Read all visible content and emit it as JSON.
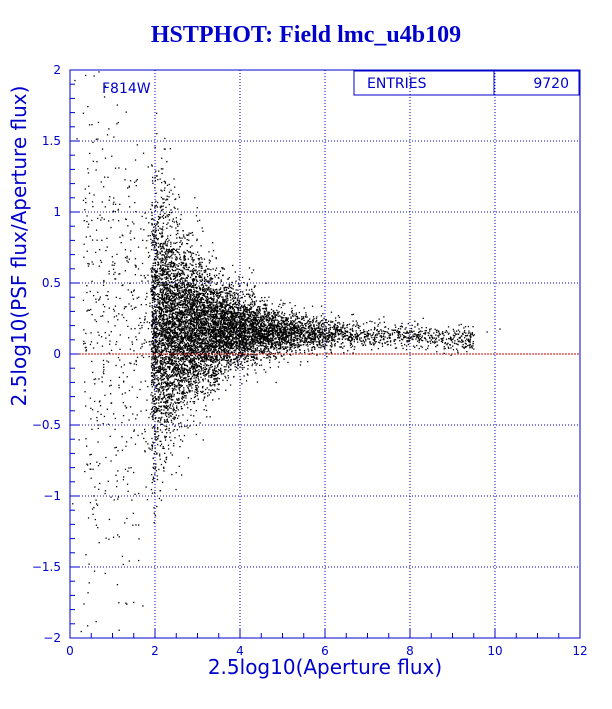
{
  "chart_data": {
    "type": "scatter",
    "title": "HSTPHOT: Field lmc_u4b109",
    "xlabel": "2.5log10(Aperture flux)",
    "ylabel": "2.5log10(PSF flux/Aperture flux)",
    "filter_label": "F814W",
    "stats": {
      "label": "ENTRIES",
      "value": "9720"
    },
    "xlim": [
      0,
      12
    ],
    "ylim": [
      -2,
      2
    ],
    "xticks": [
      0,
      2,
      4,
      6,
      8,
      10,
      12
    ],
    "xtick_labels": [
      "0",
      "2",
      "4",
      "6",
      "8",
      "10",
      "12"
    ],
    "yticks": [
      -2,
      -1.5,
      -1,
      -0.5,
      0,
      0.5,
      1,
      1.5,
      2
    ],
    "ytick_labels": [
      "−2",
      "−1.5",
      "−1",
      "−0.5",
      "0",
      "0.5",
      "1",
      "1.5",
      "2"
    ],
    "grid": true,
    "reference_line": {
      "y": 0,
      "color": "#cc0000"
    },
    "point_color": "#000000",
    "n_points": 9720,
    "points": [
      [
        0.1,
        1.93
      ],
      [
        0.15,
        1.52
      ],
      [
        0.3,
        1.7
      ],
      [
        0.5,
        1.62
      ],
      [
        0.6,
        1.3
      ],
      [
        0.35,
        1.1
      ],
      [
        0.8,
        1.25
      ],
      [
        1.0,
        0.95
      ],
      [
        1.5,
        0.82
      ],
      [
        0.25,
        -1.95
      ],
      [
        0.6,
        -1.88
      ],
      [
        1.3,
        -1.75
      ],
      [
        1.7,
        -1.77
      ],
      [
        1.1,
        -1.62
      ],
      [
        1.6,
        -1.45
      ],
      [
        0.9,
        -1.3
      ],
      [
        1.6,
        -1.2
      ],
      [
        1.9,
        -0.95
      ],
      [
        10.1,
        0.18
      ],
      [
        9.8,
        0.16
      ],
      [
        9.2,
        0.13
      ],
      [
        8.9,
        0.15
      ],
      [
        0.05,
        -1.05
      ],
      [
        0.2,
        -0.6
      ]
    ]
  }
}
